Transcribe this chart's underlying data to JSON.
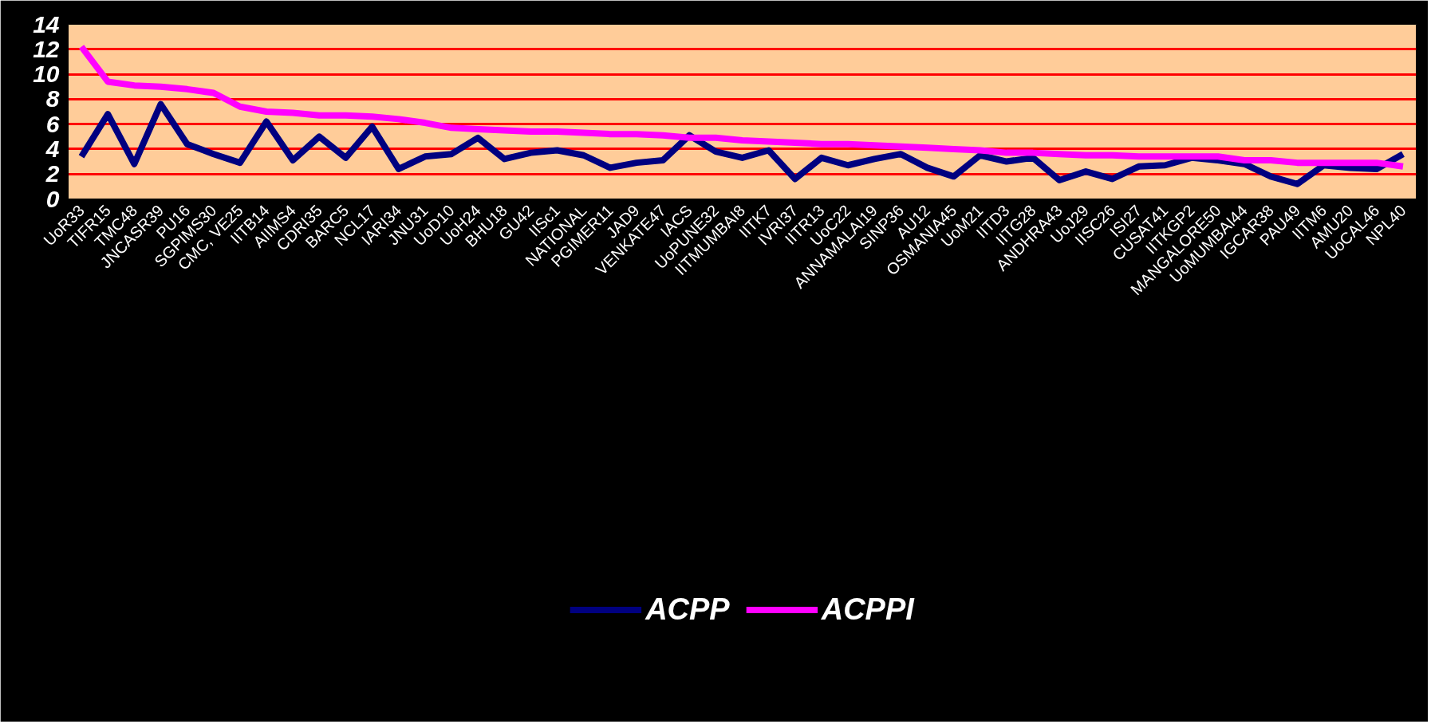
{
  "chart_data": {
    "type": "line",
    "categories": [
      "UoR33",
      "TIFR15",
      "TMC48",
      "JNCASR39",
      "PU16",
      "SGPIMS30",
      "CMC, VE25",
      "IITB14",
      "AIIMS4",
      "CDRI35",
      "BARC5",
      "NCL17",
      "IARI34",
      "JNU31",
      "UoD10",
      "UoH24",
      "BHU18",
      "GU42",
      "IISc1",
      "NATIONAL",
      "PGIMER11",
      "JAD9",
      "VENKATE47",
      "IACS",
      "UoPUNE32",
      "IITMUMBAI8",
      "IITK7",
      "IVRI37",
      "IITR13",
      "UoC22",
      "ANNAMALAI19",
      "SINP36",
      "AU12",
      "OSMANIA45",
      "UoM21",
      "IITD3",
      "IITG28",
      "ANDHRA43",
      "UoJ29",
      "IISC26",
      "ISI27",
      "CUSAT41",
      "IITKGP2",
      "MANGALORE50",
      "UoMUMBAI44",
      "IGCAR38",
      "PAU49",
      "IITM6",
      "AMU20",
      "UoCAL46",
      "NPL40"
    ],
    "series": [
      {
        "name": "ACPP",
        "color": "#000080",
        "values": [
          3.4,
          6.8,
          2.8,
          7.6,
          4.4,
          3.6,
          2.9,
          6.2,
          3.1,
          5.0,
          3.3,
          5.8,
          2.4,
          3.4,
          3.6,
          4.9,
          3.2,
          3.7,
          3.9,
          3.5,
          2.5,
          2.9,
          3.1,
          5.1,
          3.8,
          3.3,
          3.9,
          1.6,
          3.3,
          2.7,
          3.2,
          3.6,
          2.5,
          1.8,
          3.5,
          3.0,
          3.3,
          1.5,
          2.2,
          1.6,
          2.6,
          2.7,
          3.3,
          3.1,
          2.8,
          1.8,
          1.2,
          2.7,
          2.5,
          2.4,
          3.6
        ]
      },
      {
        "name": "ACPPI",
        "color": "#ff00ff",
        "values": [
          12.2,
          9.4,
          9.1,
          9.0,
          8.8,
          8.5,
          7.4,
          7.0,
          6.9,
          6.7,
          6.7,
          6.6,
          6.4,
          6.1,
          5.7,
          5.6,
          5.5,
          5.4,
          5.4,
          5.3,
          5.2,
          5.2,
          5.1,
          4.9,
          4.9,
          4.7,
          4.6,
          4.5,
          4.4,
          4.4,
          4.3,
          4.2,
          4.1,
          4.0,
          3.9,
          3.7,
          3.7,
          3.6,
          3.5,
          3.5,
          3.4,
          3.4,
          3.4,
          3.4,
          3.1,
          3.1,
          2.9,
          2.9,
          2.9,
          2.9,
          2.6
        ]
      }
    ],
    "ylim": [
      0,
      14
    ],
    "yticks": [
      0,
      2,
      4,
      6,
      8,
      10,
      12,
      14
    ],
    "grid": "y",
    "legend": "bottom",
    "marker": "none",
    "line_style": "solid"
  }
}
